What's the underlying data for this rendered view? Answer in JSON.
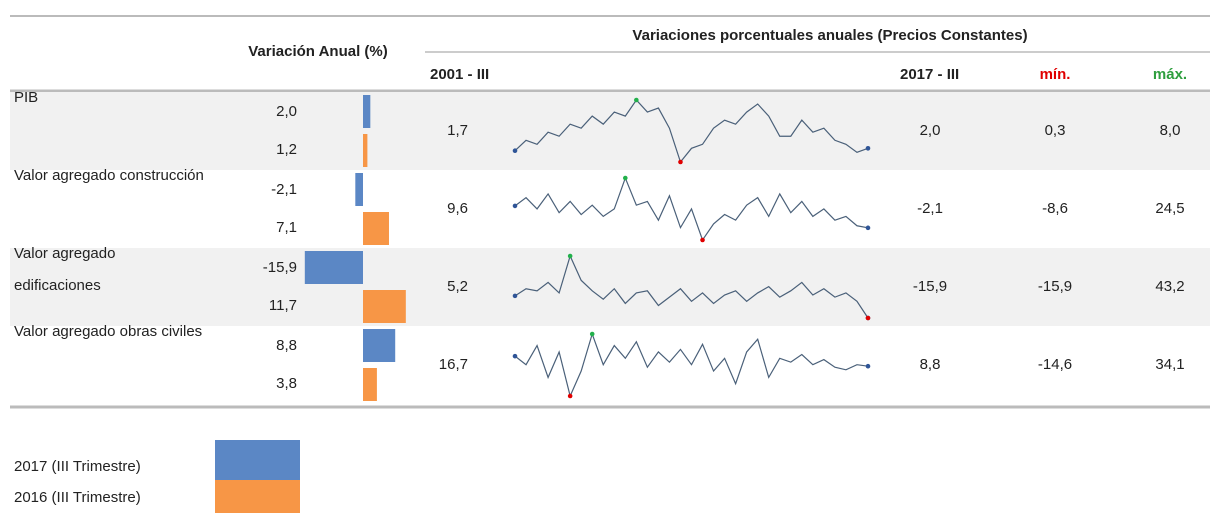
{
  "header": {
    "annual_title": "Variación Anual (%)",
    "series_title": "Variaciones porcentuales anuales  (Precios Constantes)",
    "start_label": "2001 - III",
    "end_label": "2017 - III",
    "min_label": "mín.",
    "max_label": "máx."
  },
  "rows": [
    {
      "label": "PIB",
      "annual": [
        {
          "value": 2.0,
          "label": "2,0"
        },
        {
          "value": 1.2,
          "label": "1,2"
        }
      ],
      "first": {
        "value": 1.7,
        "label": "1,7"
      },
      "last": {
        "value": 2.0,
        "label": "2,0"
      },
      "min": {
        "value": 0.3,
        "label": "0,3"
      },
      "max": {
        "value": 8.0,
        "label": "8,0"
      },
      "trend": [
        1.7,
        3.0,
        2.5,
        4.0,
        3.5,
        5.0,
        4.5,
        6.0,
        5.0,
        6.5,
        6.0,
        8.0,
        6.5,
        7.0,
        4.5,
        0.3,
        2.0,
        2.5,
        4.5,
        5.5,
        5.0,
        6.5,
        7.5,
        6.0,
        3.5,
        3.5,
        5.5,
        4.0,
        4.5,
        3.0,
        2.5,
        1.5,
        2.0
      ]
    },
    {
      "label": "Valor agregado construcción",
      "annual": [
        {
          "value": -2.1,
          "label": "-2,1"
        },
        {
          "value": 7.1,
          "label": "7,1"
        }
      ],
      "first": {
        "value": 9.6,
        "label": "9,6"
      },
      "last": {
        "value": -2.1,
        "label": "-2,1"
      },
      "min": {
        "value": -8.6,
        "label": "-8,6"
      },
      "max": {
        "value": 24.5,
        "label": "24,5"
      },
      "trend": [
        9.6,
        14,
        8,
        16,
        6,
        12,
        5,
        10,
        4,
        8,
        24.5,
        10,
        12,
        2,
        15,
        -2,
        8,
        -8.6,
        0,
        5,
        2,
        10,
        14,
        4,
        16,
        6,
        12,
        4,
        8,
        2,
        4,
        -1,
        -2.1
      ]
    },
    {
      "label": "Valor agregado edificaciones",
      "annual": [
        {
          "value": -15.9,
          "label": "-15,9"
        },
        {
          "value": 11.7,
          "label": "11,7"
        }
      ],
      "first": {
        "value": 5.2,
        "label": "5,2"
      },
      "last": {
        "value": -15.9,
        "label": "-15,9"
      },
      "min": {
        "value": -15.9,
        "label": "-15,9"
      },
      "max": {
        "value": 43.2,
        "label": "43,2"
      },
      "trend": [
        5.2,
        12,
        10,
        18,
        8,
        43.2,
        20,
        10,
        2,
        12,
        -2,
        8,
        10,
        -4,
        4,
        12,
        0,
        8,
        -2,
        6,
        10,
        0,
        8,
        14,
        4,
        10,
        18,
        6,
        12,
        4,
        8,
        0,
        -15.9
      ]
    },
    {
      "label": "Valor agregado obras civiles",
      "annual": [
        {
          "value": 8.8,
          "label": "8,8"
        },
        {
          "value": 3.8,
          "label": "3,8"
        }
      ],
      "first": {
        "value": 16.7,
        "label": "16,7"
      },
      "last": {
        "value": 8.8,
        "label": "8,8"
      },
      "min": {
        "value": -14.6,
        "label": "-14,6"
      },
      "max": {
        "value": 34.1,
        "label": "34,1"
      },
      "trend": [
        16.7,
        10,
        25,
        0,
        20,
        -14.6,
        5,
        34.1,
        10,
        25,
        15,
        28,
        8,
        20,
        12,
        22,
        10,
        26,
        5,
        15,
        -5,
        20,
        30,
        0,
        15,
        12,
        18,
        10,
        14,
        8,
        6,
        10,
        8.8
      ]
    }
  ],
  "legend": [
    {
      "label": "2017 (III Trimestre)",
      "color": "#5b87c5"
    },
    {
      "label": "2016 (III Trimestre)",
      "color": "#f79646"
    }
  ]
}
